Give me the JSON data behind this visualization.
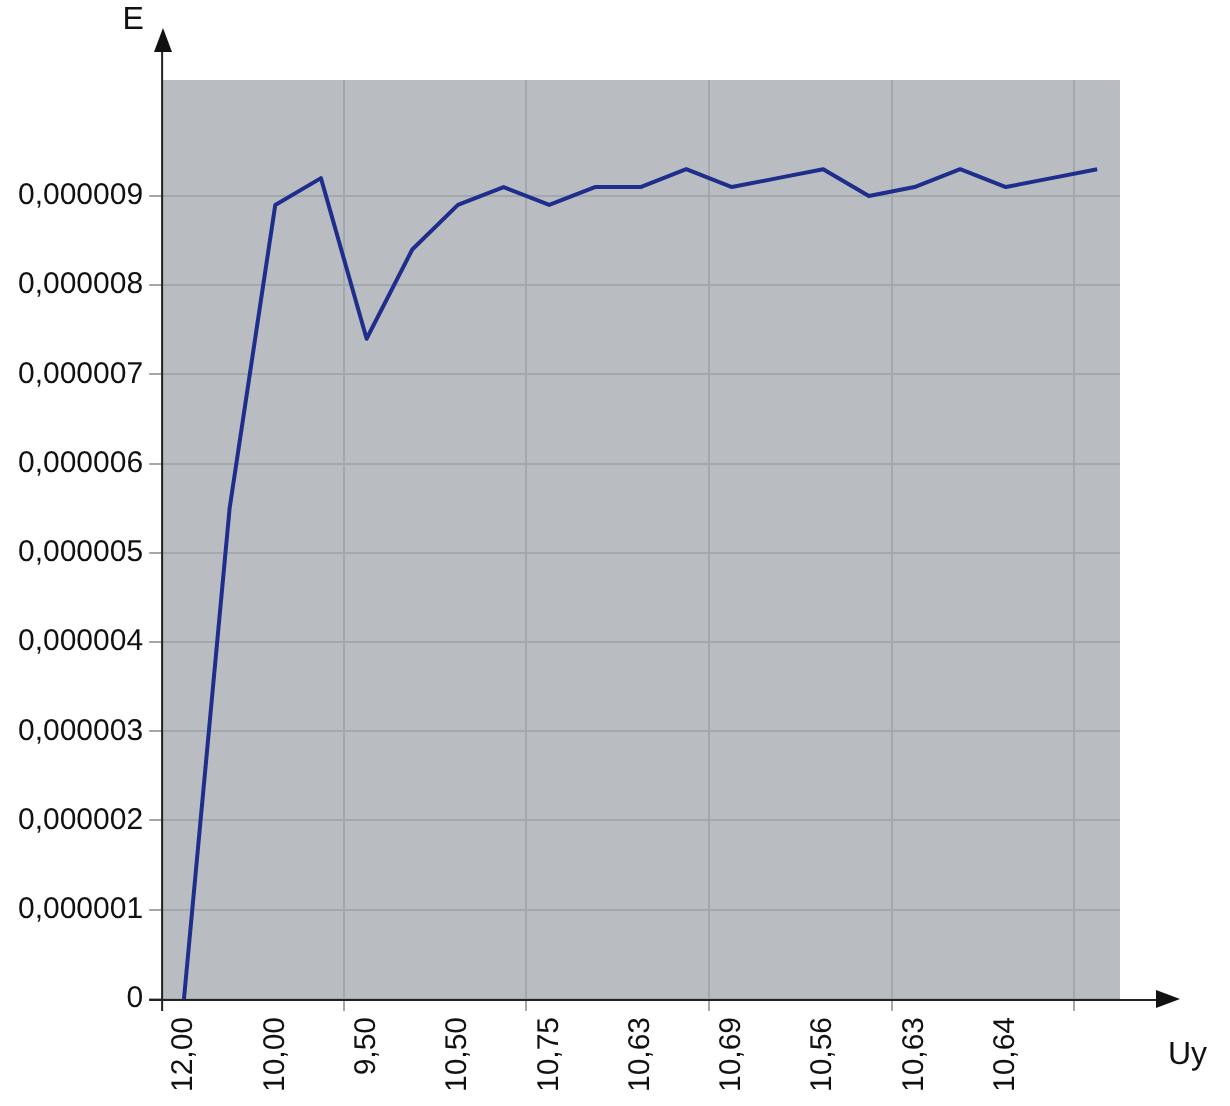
{
  "chart_data": {
    "type": "line",
    "xlabel": "Uy",
    "ylabel": "E",
    "categories": [
      "12,00",
      null,
      "10,00",
      null,
      "9,50",
      null,
      "10,50",
      null,
      "10,75",
      null,
      "10,63",
      null,
      "10,69",
      null,
      "10,56",
      null,
      "10,63",
      null,
      "10,64",
      null,
      null
    ],
    "series": [
      {
        "color": "#1f2e8c",
        "values": [
          0,
          5.5e-06,
          8.9e-06,
          9.2e-06,
          7.4e-06,
          8.4e-06,
          8.9e-06,
          9.1e-06,
          8.9e-06,
          9.1e-06,
          9.1e-06,
          9.3e-06,
          9.1e-06,
          9.2e-06,
          9.3e-06,
          9e-06,
          9.1e-06,
          9.3e-06,
          9.1e-06,
          9.2e-06,
          9.3e-06
        ]
      }
    ],
    "ylim": [
      0,
      1.03e-05
    ],
    "yticks": [
      0,
      {
        "value": 1e-06,
        "label": "0,000001"
      },
      {
        "value": 2e-06,
        "label": "0,000002"
      },
      {
        "value": 3e-06,
        "label": "0,000003"
      },
      {
        "value": 4e-06,
        "label": "0,000004"
      },
      {
        "value": 5e-06,
        "label": "0,000005"
      },
      {
        "value": 6e-06,
        "label": "0,000006"
      },
      {
        "value": 7e-06,
        "label": "0,000007"
      },
      {
        "value": 8e-06,
        "label": "0,000008"
      },
      {
        "value": 9e-06,
        "label": "0,000009"
      }
    ],
    "grid": true,
    "legend": false,
    "marker": "none",
    "line_style": "solid"
  }
}
